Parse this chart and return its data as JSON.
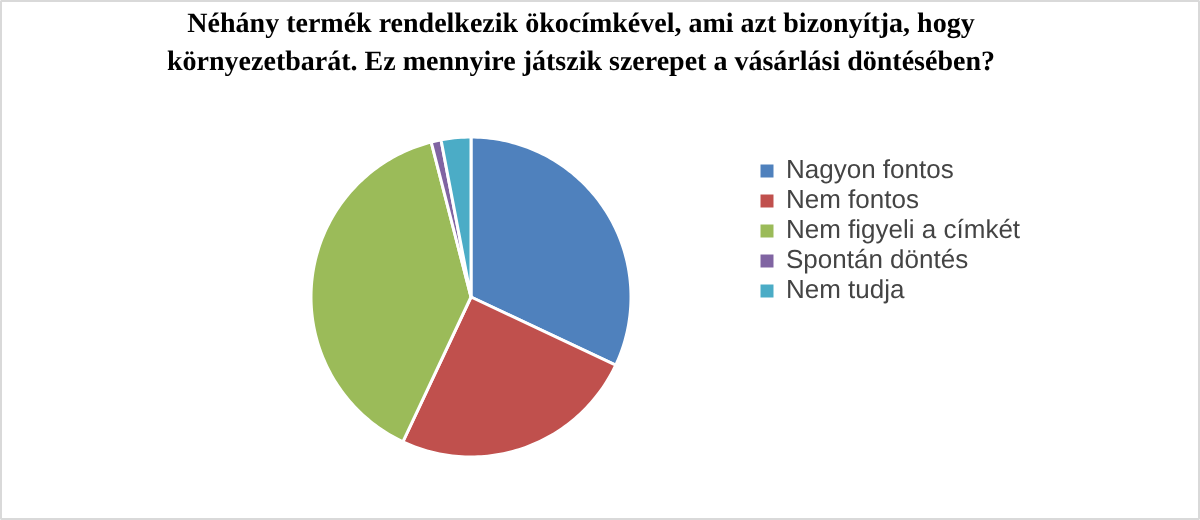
{
  "chart_data": {
    "type": "pie",
    "title": "Néhány termék rendelkezik ökocímkével, ami azt bizonyítja, hogy környezetbarát. Ez mennyire játszik szerepet a vásárlási döntésében?",
    "categories": [
      "Nagyon fontos",
      "Nem fontos",
      "Nem figyeli a címkét",
      "Spontán döntés",
      "Nem tudja"
    ],
    "values": [
      32,
      25,
      39,
      1,
      3
    ],
    "colors": [
      "#4f81bd",
      "#c0504d",
      "#9bbb59",
      "#8064a2",
      "#4bacc6"
    ],
    "legend": "right"
  }
}
